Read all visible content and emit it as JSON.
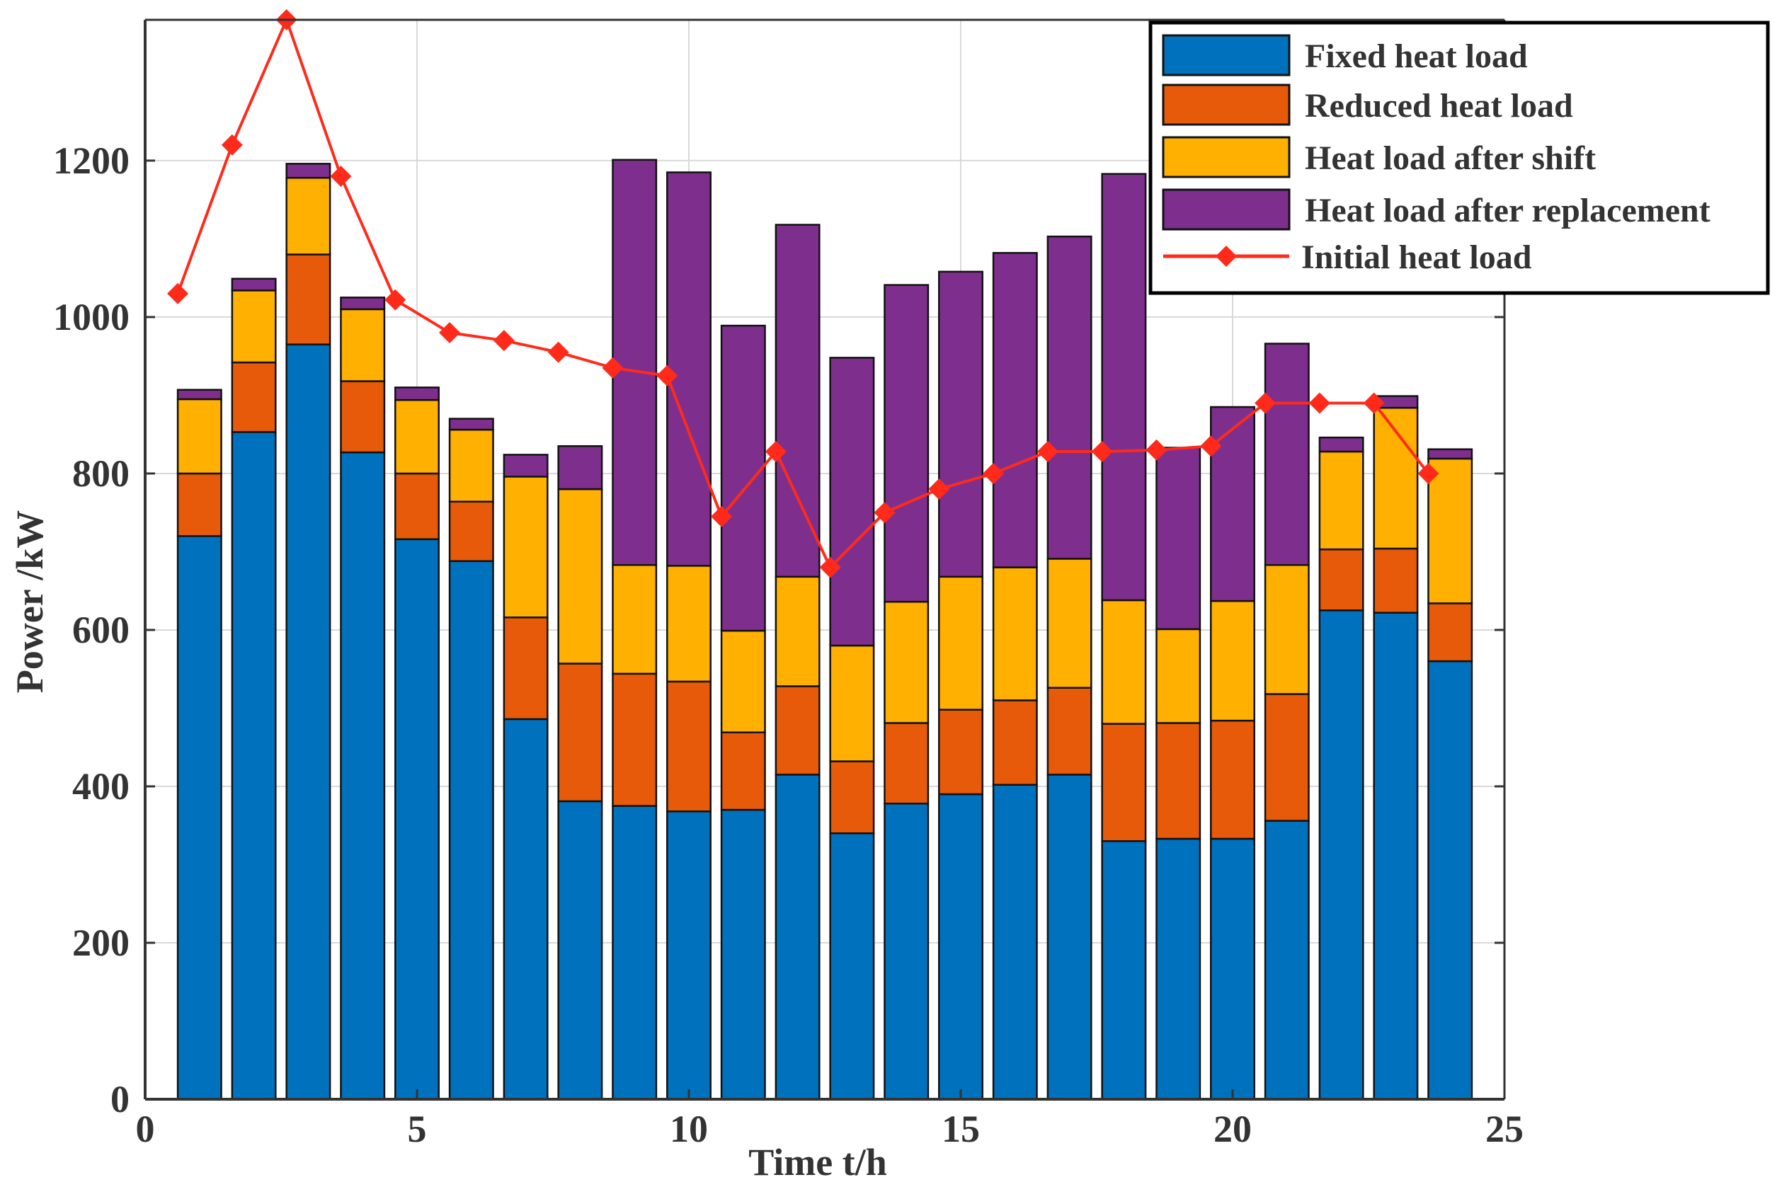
{
  "chart_data": {
    "type": "bar",
    "stacked": true,
    "xlabel": "Time t/h",
    "ylabel": "Power /kW",
    "xlim": [
      0,
      25
    ],
    "ylim": [
      0,
      1380
    ],
    "x_ticks": [
      0,
      5,
      10,
      15,
      20,
      25
    ],
    "y_ticks": [
      0,
      200,
      400,
      600,
      800,
      1000,
      1200
    ],
    "x": [
      1,
      2,
      3,
      4,
      5,
      6,
      7,
      8,
      9,
      10,
      11,
      12,
      13,
      14,
      15,
      16,
      17,
      18,
      19,
      20,
      21,
      22,
      23,
      24
    ],
    "series": [
      {
        "name": "Fixed heat load",
        "color": "#0072BD",
        "values": [
          720,
          853,
          965,
          827,
          716,
          688,
          486,
          381,
          375,
          368,
          370,
          415,
          340,
          378,
          390,
          402,
          415,
          330,
          333,
          333,
          356,
          625,
          622,
          560
        ]
      },
      {
        "name": "Reduced heat load",
        "color": "#E65A0A",
        "values": [
          80,
          89,
          115,
          91,
          84,
          76,
          130,
          176,
          169,
          166,
          99,
          113,
          92,
          103,
          108,
          108,
          111,
          150,
          148,
          151,
          162,
          78,
          82,
          74
        ]
      },
      {
        "name": "Heat load after shift",
        "color": "#FFB000",
        "values": [
          95,
          92,
          98,
          92,
          94,
          92,
          180,
          223,
          139,
          148,
          130,
          140,
          148,
          155,
          170,
          170,
          165,
          158,
          120,
          153,
          165,
          125,
          180,
          185
        ]
      },
      {
        "name": "Heat load after replacement",
        "color": "#7E2F8E",
        "values": [
          12,
          15,
          18,
          15,
          16,
          14,
          28,
          55,
          518,
          503,
          390,
          450,
          368,
          405,
          390,
          402,
          412,
          545,
          232,
          248,
          283,
          18,
          15,
          12
        ]
      }
    ],
    "line": {
      "name": "Initial heat load",
      "color": "#FF2A1A",
      "x": [
        0.6,
        1.6,
        2.6,
        3.6,
        4.6,
        5.6,
        6.6,
        7.6,
        8.6,
        9.6,
        10.6,
        11.6,
        12.6,
        13.6,
        14.6,
        15.6,
        16.6,
        17.6,
        18.6,
        19.6,
        20.6,
        21.6,
        22.6,
        23.6
      ],
      "values": [
        1030,
        1220,
        1380,
        1180,
        1022,
        980,
        970,
        955,
        935,
        925,
        745,
        828,
        680,
        750,
        780,
        800,
        828,
        828,
        830,
        835,
        890,
        890,
        890,
        800
      ]
    },
    "legend_position": "top-right",
    "grid": true
  }
}
